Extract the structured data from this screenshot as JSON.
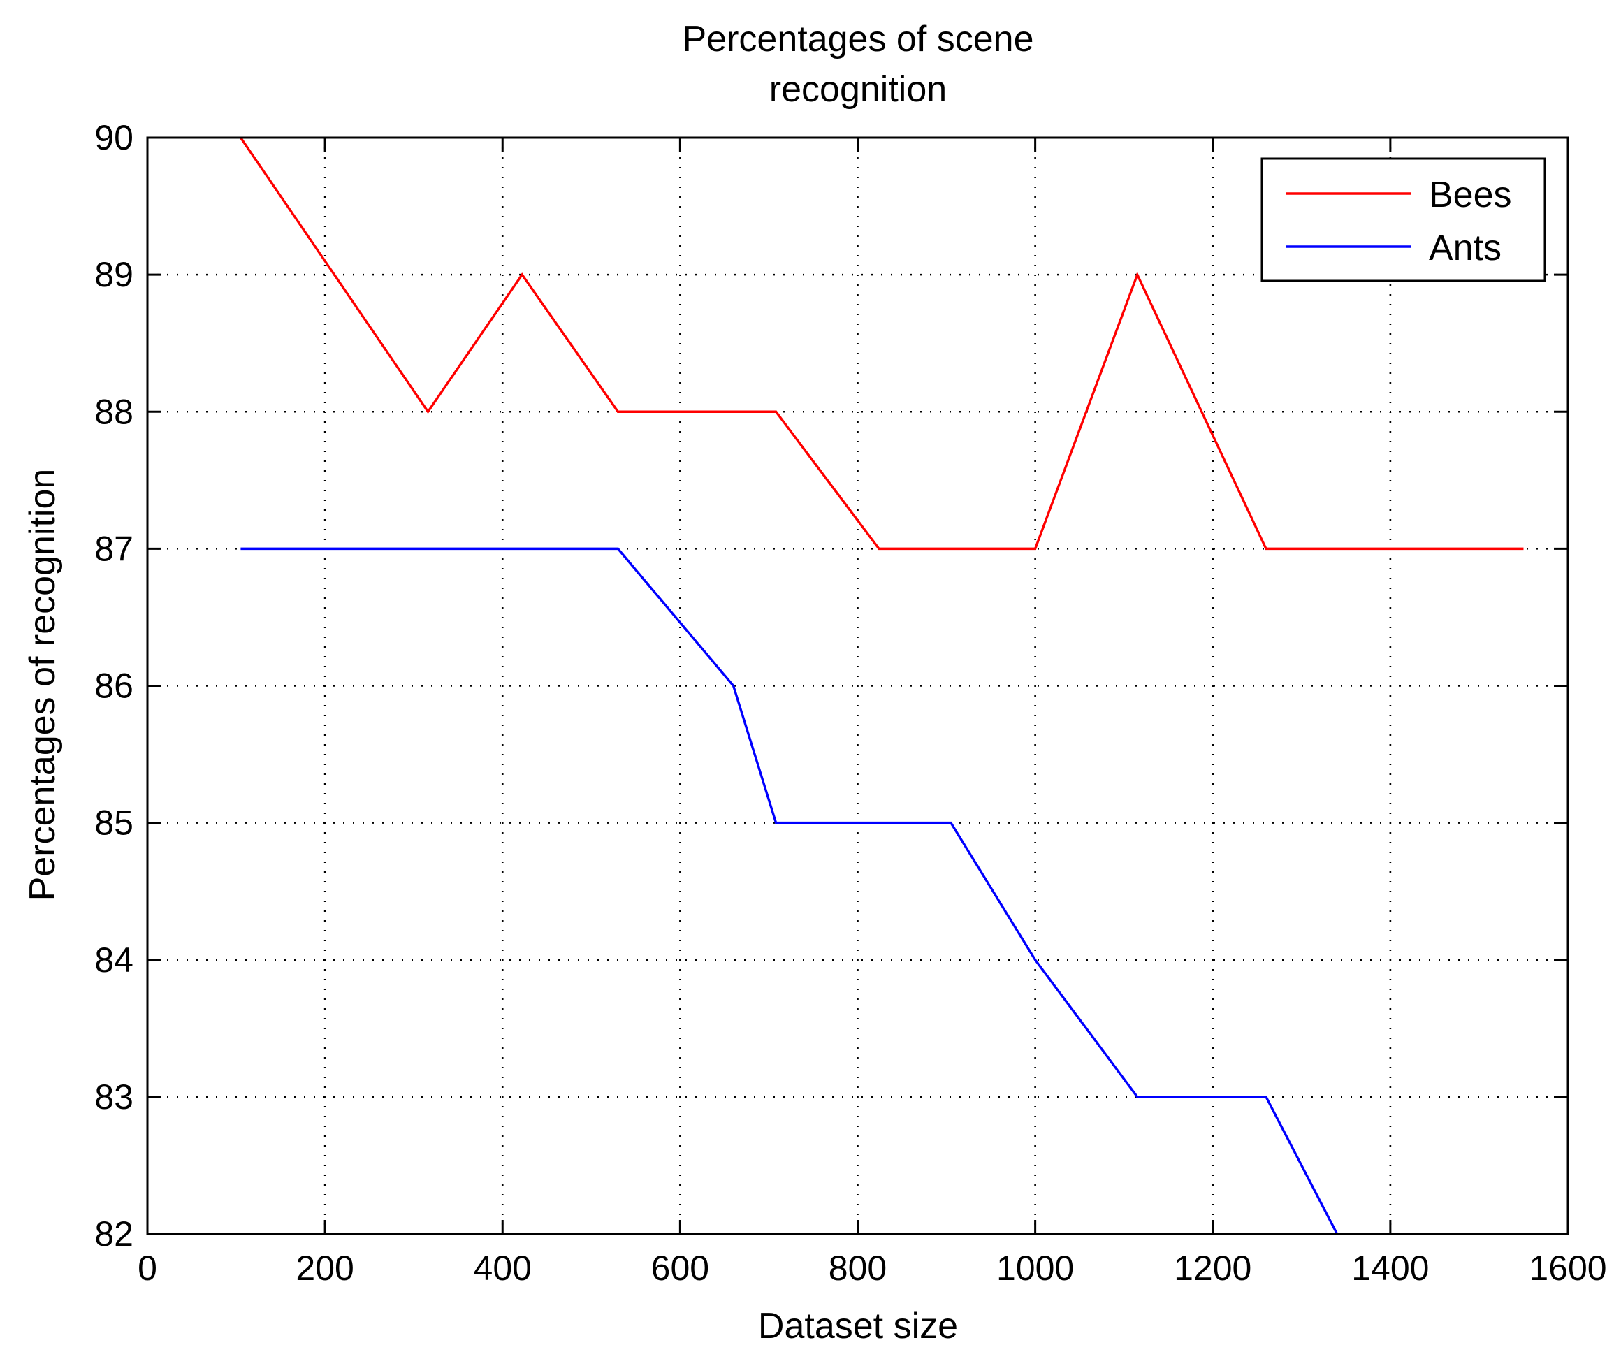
{
  "chart_data": {
    "type": "line",
    "title_lines": [
      "Percentages of scene",
      "recognition"
    ],
    "xlabel": "Dataset size",
    "ylabel": "Percentages of recognition",
    "xlim": [
      0,
      1600
    ],
    "ylim": [
      82,
      90
    ],
    "xticks": [
      0,
      200,
      400,
      600,
      800,
      1000,
      1200,
      1400,
      1600
    ],
    "yticks": [
      82,
      83,
      84,
      85,
      86,
      87,
      88,
      89,
      90
    ],
    "xtick_labels": [
      "0",
      "200",
      "400",
      "600",
      "800",
      "1000",
      "1200",
      "1400",
      "1600"
    ],
    "ytick_labels": [
      "82",
      "83",
      "84",
      "85",
      "86",
      "87",
      "88",
      "89",
      "90"
    ],
    "grid": true,
    "legend_position": "top-right",
    "series": [
      {
        "name": "Bees",
        "color": "#ff0000",
        "x": [
          105,
          316,
          422,
          530,
          708,
          824,
          1000,
          1115,
          1260,
          1550
        ],
        "y": [
          90,
          88,
          89,
          88,
          88,
          87,
          87,
          89,
          87,
          87
        ]
      },
      {
        "name": "Ants",
        "color": "#0000ff",
        "x": [
          105,
          530,
          660,
          708,
          905,
          1000,
          1115,
          1260,
          1340,
          1550
        ],
        "y": [
          87,
          87,
          86,
          85,
          85,
          84,
          83,
          83,
          82,
          82
        ]
      }
    ]
  }
}
